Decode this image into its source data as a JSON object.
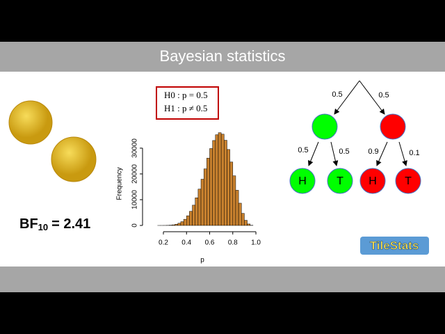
{
  "title": "Bayesian statistics",
  "bayes_factor": {
    "label": "BF",
    "subscript": "10",
    "text": "= 2.41"
  },
  "hypotheses": [
    "H0 : p = 0.5",
    "H1 : p ≠ 0.5"
  ],
  "tree": {
    "root_edges": [
      "0.5",
      "0.5"
    ],
    "left_edges": [
      "0.5",
      "0.5"
    ],
    "right_edges": [
      "0.9",
      "0.1"
    ],
    "leaves": [
      "H",
      "T",
      "H",
      "T"
    ]
  },
  "logo": "TileStats",
  "chart_data": {
    "type": "histogram",
    "xlabel": "p",
    "ylabel": "Frequency",
    "bins": [
      0.1,
      0.125,
      0.15,
      0.175,
      0.2,
      0.225,
      0.25,
      0.275,
      0.3,
      0.325,
      0.35,
      0.375,
      0.4,
      0.425,
      0.45,
      0.475,
      0.5,
      0.525,
      0.55,
      0.575,
      0.6,
      0.625,
      0.65,
      0.675,
      0.7,
      0.725,
      0.75,
      0.775,
      0.8,
      0.825,
      0.85,
      0.875,
      0.9,
      0.925,
      0.95,
      0.975,
      1.0
    ],
    "values": [
      0,
      0,
      2,
      6,
      18,
      48,
      112,
      243,
      469,
      864,
      1468,
      2395,
      3757,
      5492,
      7874,
      10735,
      14105,
      17950,
      21960,
      26140,
      29850,
      32970,
      35210,
      36000,
      35430,
      33070,
      29480,
      24620,
      19270,
      13670,
      8650,
      4680,
      2000,
      573,
      75,
      0
    ],
    "color": "#c8812e",
    "xlim": [
      0.06,
      1.04
    ],
    "xticks": [
      0.2,
      0.4,
      0.6,
      0.8,
      {
        "value": 1,
        "label": "1.0"
      }
    ],
    "ylim": [
      0,
      36000
    ],
    "yticks": [
      0,
      10000,
      20000,
      30000
    ]
  }
}
